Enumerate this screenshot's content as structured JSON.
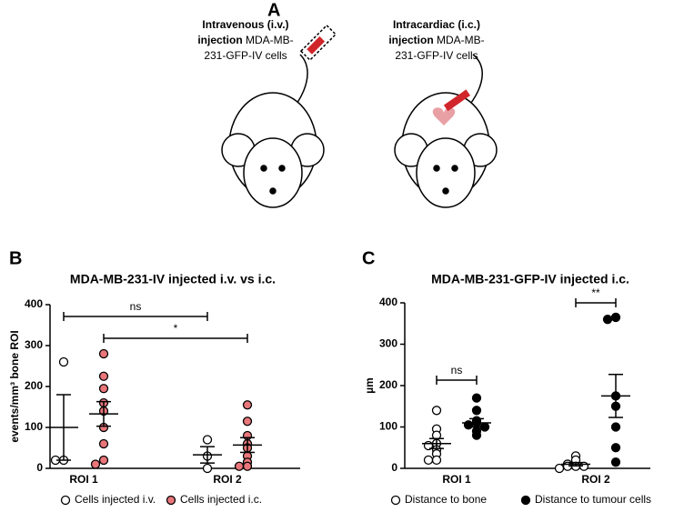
{
  "panel_a": {
    "label": "A",
    "left_caption": [
      [
        {
          "b": "Intravenous (i.v.)"
        }
      ],
      [
        {
          "b": "injection"
        },
        {
          "n": " MDA-MB-"
        }
      ],
      [
        {
          "n": "231-GFP-IV cells"
        }
      ]
    ],
    "right_caption": [
      [
        {
          "b": "Intracardiac (i.c.)"
        }
      ],
      [
        {
          "b": "injection"
        },
        {
          "n": " MDA-MB-"
        }
      ],
      [
        {
          "n": "231-GFP-IV cells"
        }
      ]
    ]
  },
  "chart_data": [
    {
      "type": "dot-plot",
      "label": "B",
      "title": "MDA-MB-231-IV injected i.v. vs i.c.",
      "y_label": "events/mm³ bone ROI",
      "categories": [
        "ROI 1",
        "ROI 2"
      ],
      "ylim": [
        0,
        400
      ],
      "yticks": [
        0,
        100,
        200,
        300,
        400
      ],
      "series": [
        {
          "name": "Cells injected i.v.",
          "color": "#000000",
          "fill": "#ffffff",
          "values": [
            [
              260,
              20,
              20
            ],
            [
              70,
              30,
              0
            ]
          ],
          "means": [
            100,
            33
          ],
          "errors": [
            80,
            20
          ]
        },
        {
          "name": "Cells injected i.c.",
          "color": "#000000",
          "fill": "#e8767a",
          "values": [
            [
              280,
              225,
              195,
              160,
              140,
              100,
              60,
              20,
              10
            ],
            [
              155,
              115,
              80,
              60,
              50,
              30,
              15,
              5,
              5
            ]
          ],
          "means": [
            133,
            57
          ],
          "errors": [
            30,
            18
          ]
        }
      ],
      "annotations": [
        {
          "text": "ns"
        },
        {
          "text": "*"
        }
      ]
    },
    {
      "type": "dot-plot",
      "label": "C",
      "title": "MDA-MB-231-GFP-IV injected i.c.",
      "y_label": "µm",
      "categories": [
        "ROI 1",
        "ROI 2"
      ],
      "ylim": [
        0,
        400
      ],
      "yticks": [
        0,
        100,
        200,
        300,
        400
      ],
      "series": [
        {
          "name": "Distance  to bone",
          "color": "#000000",
          "fill": "#ffffff",
          "values": [
            [
              140,
              95,
              80,
              60,
              55,
              45,
              35,
              20,
              20
            ],
            [
              30,
              20,
              10,
              5,
              5,
              5,
              0
            ]
          ],
          "means": [
            60,
            10
          ],
          "errors": [
            12,
            4
          ]
        },
        {
          "name": "Distance to tumour cells",
          "color": "#000000",
          "fill": "#000000",
          "values": [
            [
              170,
              140,
              115,
              110,
              105,
              100,
              90,
              80
            ],
            [
              365,
              360,
              175,
              150,
              100,
              50,
              15
            ]
          ],
          "means": [
            110,
            175
          ],
          "errors": [
            10,
            52
          ]
        }
      ],
      "annotations": [
        {
          "text": "ns"
        },
        {
          "text": "**"
        }
      ]
    }
  ]
}
